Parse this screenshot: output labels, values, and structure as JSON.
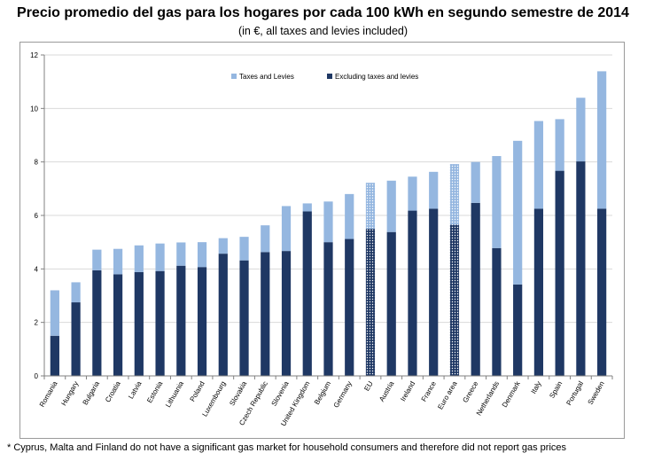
{
  "title": "Precio promedio del gas para los hogares por cada 100 kWh en segundo semestre de 2014",
  "subtitle": "(in €, all taxes and levies included)",
  "footnote": "* Cyprus, Malta and Finland do not have a significant gas market for household consumers and therefore did not report gas prices",
  "colors": {
    "taxes": "#95b7e0",
    "excluding": "#1f3864",
    "grid": "#d9d9d9",
    "axis": "#808080"
  },
  "chart_data": {
    "type": "bar",
    "stacked": true,
    "categories": [
      "Romania",
      "Hungary",
      "Bulgaria",
      "Croatia",
      "Latvia",
      "Estonia",
      "Lithuania",
      "Poland",
      "Luxembourg",
      "Slovakia",
      "Czech Republic",
      "Slovenia",
      "United Kingdom",
      "Belgium",
      "Germany",
      "EU",
      "Austria",
      "Ireland",
      "France",
      "Euro area",
      "Greece",
      "Netherlands",
      "Denmark",
      "Italy",
      "Spain",
      "Portugal",
      "Sweden"
    ],
    "highlighted_categories": [
      "EU",
      "Euro area"
    ],
    "series": [
      {
        "name": "Excluding taxes and levies",
        "color": "#1f3864",
        "values": [
          1.5,
          2.75,
          3.95,
          3.8,
          3.88,
          3.92,
          4.12,
          4.07,
          4.57,
          4.32,
          4.63,
          4.67,
          6.15,
          5.0,
          5.12,
          5.5,
          5.38,
          6.18,
          6.25,
          5.65,
          6.47,
          4.78,
          3.42,
          6.25,
          7.67,
          8.02,
          6.25
        ]
      },
      {
        "name": "Taxes and Levies",
        "color": "#95b7e0",
        "values": [
          1.7,
          0.75,
          0.77,
          0.95,
          1.0,
          1.03,
          0.87,
          0.93,
          0.58,
          0.88,
          1.0,
          1.68,
          0.3,
          1.52,
          1.68,
          1.72,
          1.92,
          1.27,
          1.38,
          2.27,
          1.53,
          3.44,
          5.37,
          3.28,
          1.93,
          2.38,
          5.14
        ]
      }
    ],
    "legend": [
      "Taxes and Levies",
      "Excluding taxes and levies"
    ],
    "legend_position": "top-left",
    "ylim": [
      0,
      12
    ],
    "yticks": [
      "0",
      "2",
      "4",
      "6",
      "8",
      "10",
      "12"
    ],
    "grid": true,
    "xlabel": "",
    "ylabel": ""
  }
}
